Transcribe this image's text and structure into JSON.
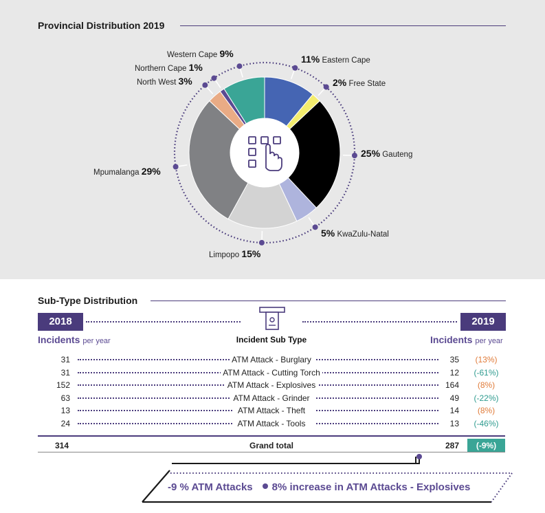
{
  "province_section": {
    "title": "Provincial Distribution 2019"
  },
  "subtype_section": {
    "title": "Sub-Type Distribution",
    "year_left": "2018",
    "year_right": "2019",
    "incidents_label": "Incidents",
    "per_year_label": "per year",
    "column_header": "Incident Sub Type",
    "rows": [
      {
        "label": "ATM Attack - Burglary",
        "v2018": "31",
        "v2019": "35",
        "change": "(13%)",
        "trend": "pos"
      },
      {
        "label": "ATM Attack - Cutting Torch",
        "v2018": "31",
        "v2019": "12",
        "change": "(-61%)",
        "trend": "neg"
      },
      {
        "label": "ATM Attack - Explosives",
        "v2018": "152",
        "v2019": "164",
        "change": "(8%)",
        "trend": "pos"
      },
      {
        "label": "ATM Attack - Grinder",
        "v2018": "63",
        "v2019": "49",
        "change": "(-22%)",
        "trend": "neg"
      },
      {
        "label": "ATM Attack - Theft",
        "v2018": "13",
        "v2019": "14",
        "change": "(8%)",
        "trend": "pos"
      },
      {
        "label": "ATM Attack - Tools",
        "v2018": "24",
        "v2019": "13",
        "change": "(-46%)",
        "trend": "neg"
      }
    ],
    "total": {
      "label": "Grand total",
      "v2018": "314",
      "v2019": "287",
      "change": "(-9%)"
    }
  },
  "summary": {
    "left": "-9 % ATM Attacks",
    "right": "8% increase in ATM Attacks - Explosives"
  },
  "icons": {
    "center": "atm-keypad-hand-icon",
    "table": "atm-cash-icon"
  },
  "colors": {
    "accent": "#4a3b7c",
    "positive": "#e07b39",
    "negative": "#2e9b8f",
    "total_badge": "#3aa596"
  },
  "chart_data": {
    "type": "pie",
    "title": "Provincial Distribution 2019",
    "slices": [
      {
        "name": "Eastern Cape",
        "value": 11,
        "label": "11%",
        "color": "#4565b3"
      },
      {
        "name": "Free State",
        "value": 2,
        "label": "2%",
        "color": "#f3ec6e"
      },
      {
        "name": "Gauteng",
        "value": 25,
        "label": "25%",
        "color": "#000000"
      },
      {
        "name": "KwaZulu-Natal",
        "value": 5,
        "label": "5%",
        "color": "#aeb4dd"
      },
      {
        "name": "Limpopo",
        "value": 15,
        "label": "15%",
        "color": "#d3d3d3"
      },
      {
        "name": "Mpumalanga",
        "value": 29,
        "label": "29%",
        "color": "#808184"
      },
      {
        "name": "North West",
        "value": 3,
        "label": "3%",
        "color": "#e9ab85"
      },
      {
        "name": "Northern Cape",
        "value": 1,
        "label": "1%",
        "color": "#5b4a92"
      },
      {
        "name": "Western Cape",
        "value": 9,
        "label": "9%",
        "color": "#3aa596"
      }
    ]
  }
}
